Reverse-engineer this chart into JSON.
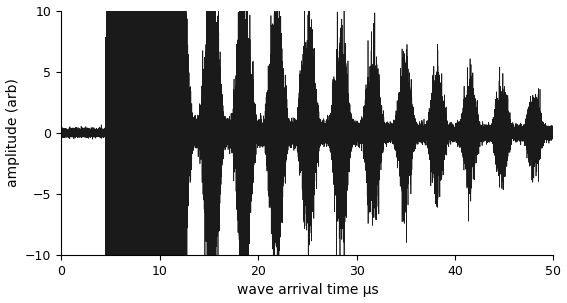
{
  "xlabel": "wave arrival time μs",
  "ylabel": "amplitude (arb)",
  "xlim": [
    0,
    50
  ],
  "ylim": [
    -10,
    10
  ],
  "xticks": [
    0,
    10,
    20,
    30,
    40,
    50
  ],
  "yticks": [
    -10,
    -5,
    0,
    5,
    10
  ],
  "line_color": "#1a1a1a",
  "line_width": 0.5,
  "background_color": "#ffffff",
  "xlabel_fontsize": 10,
  "ylabel_fontsize": 10,
  "tick_fontsize": 9,
  "seed": 7,
  "fs": 1000,
  "duration": 50.0,
  "echo_interval": 3.27,
  "first_echo": 5.5,
  "second_echo": 8.8,
  "initial_amp": 10.0,
  "global_decay": 0.045,
  "pre_signal_noise": 0.15,
  "base_noise": 0.25
}
